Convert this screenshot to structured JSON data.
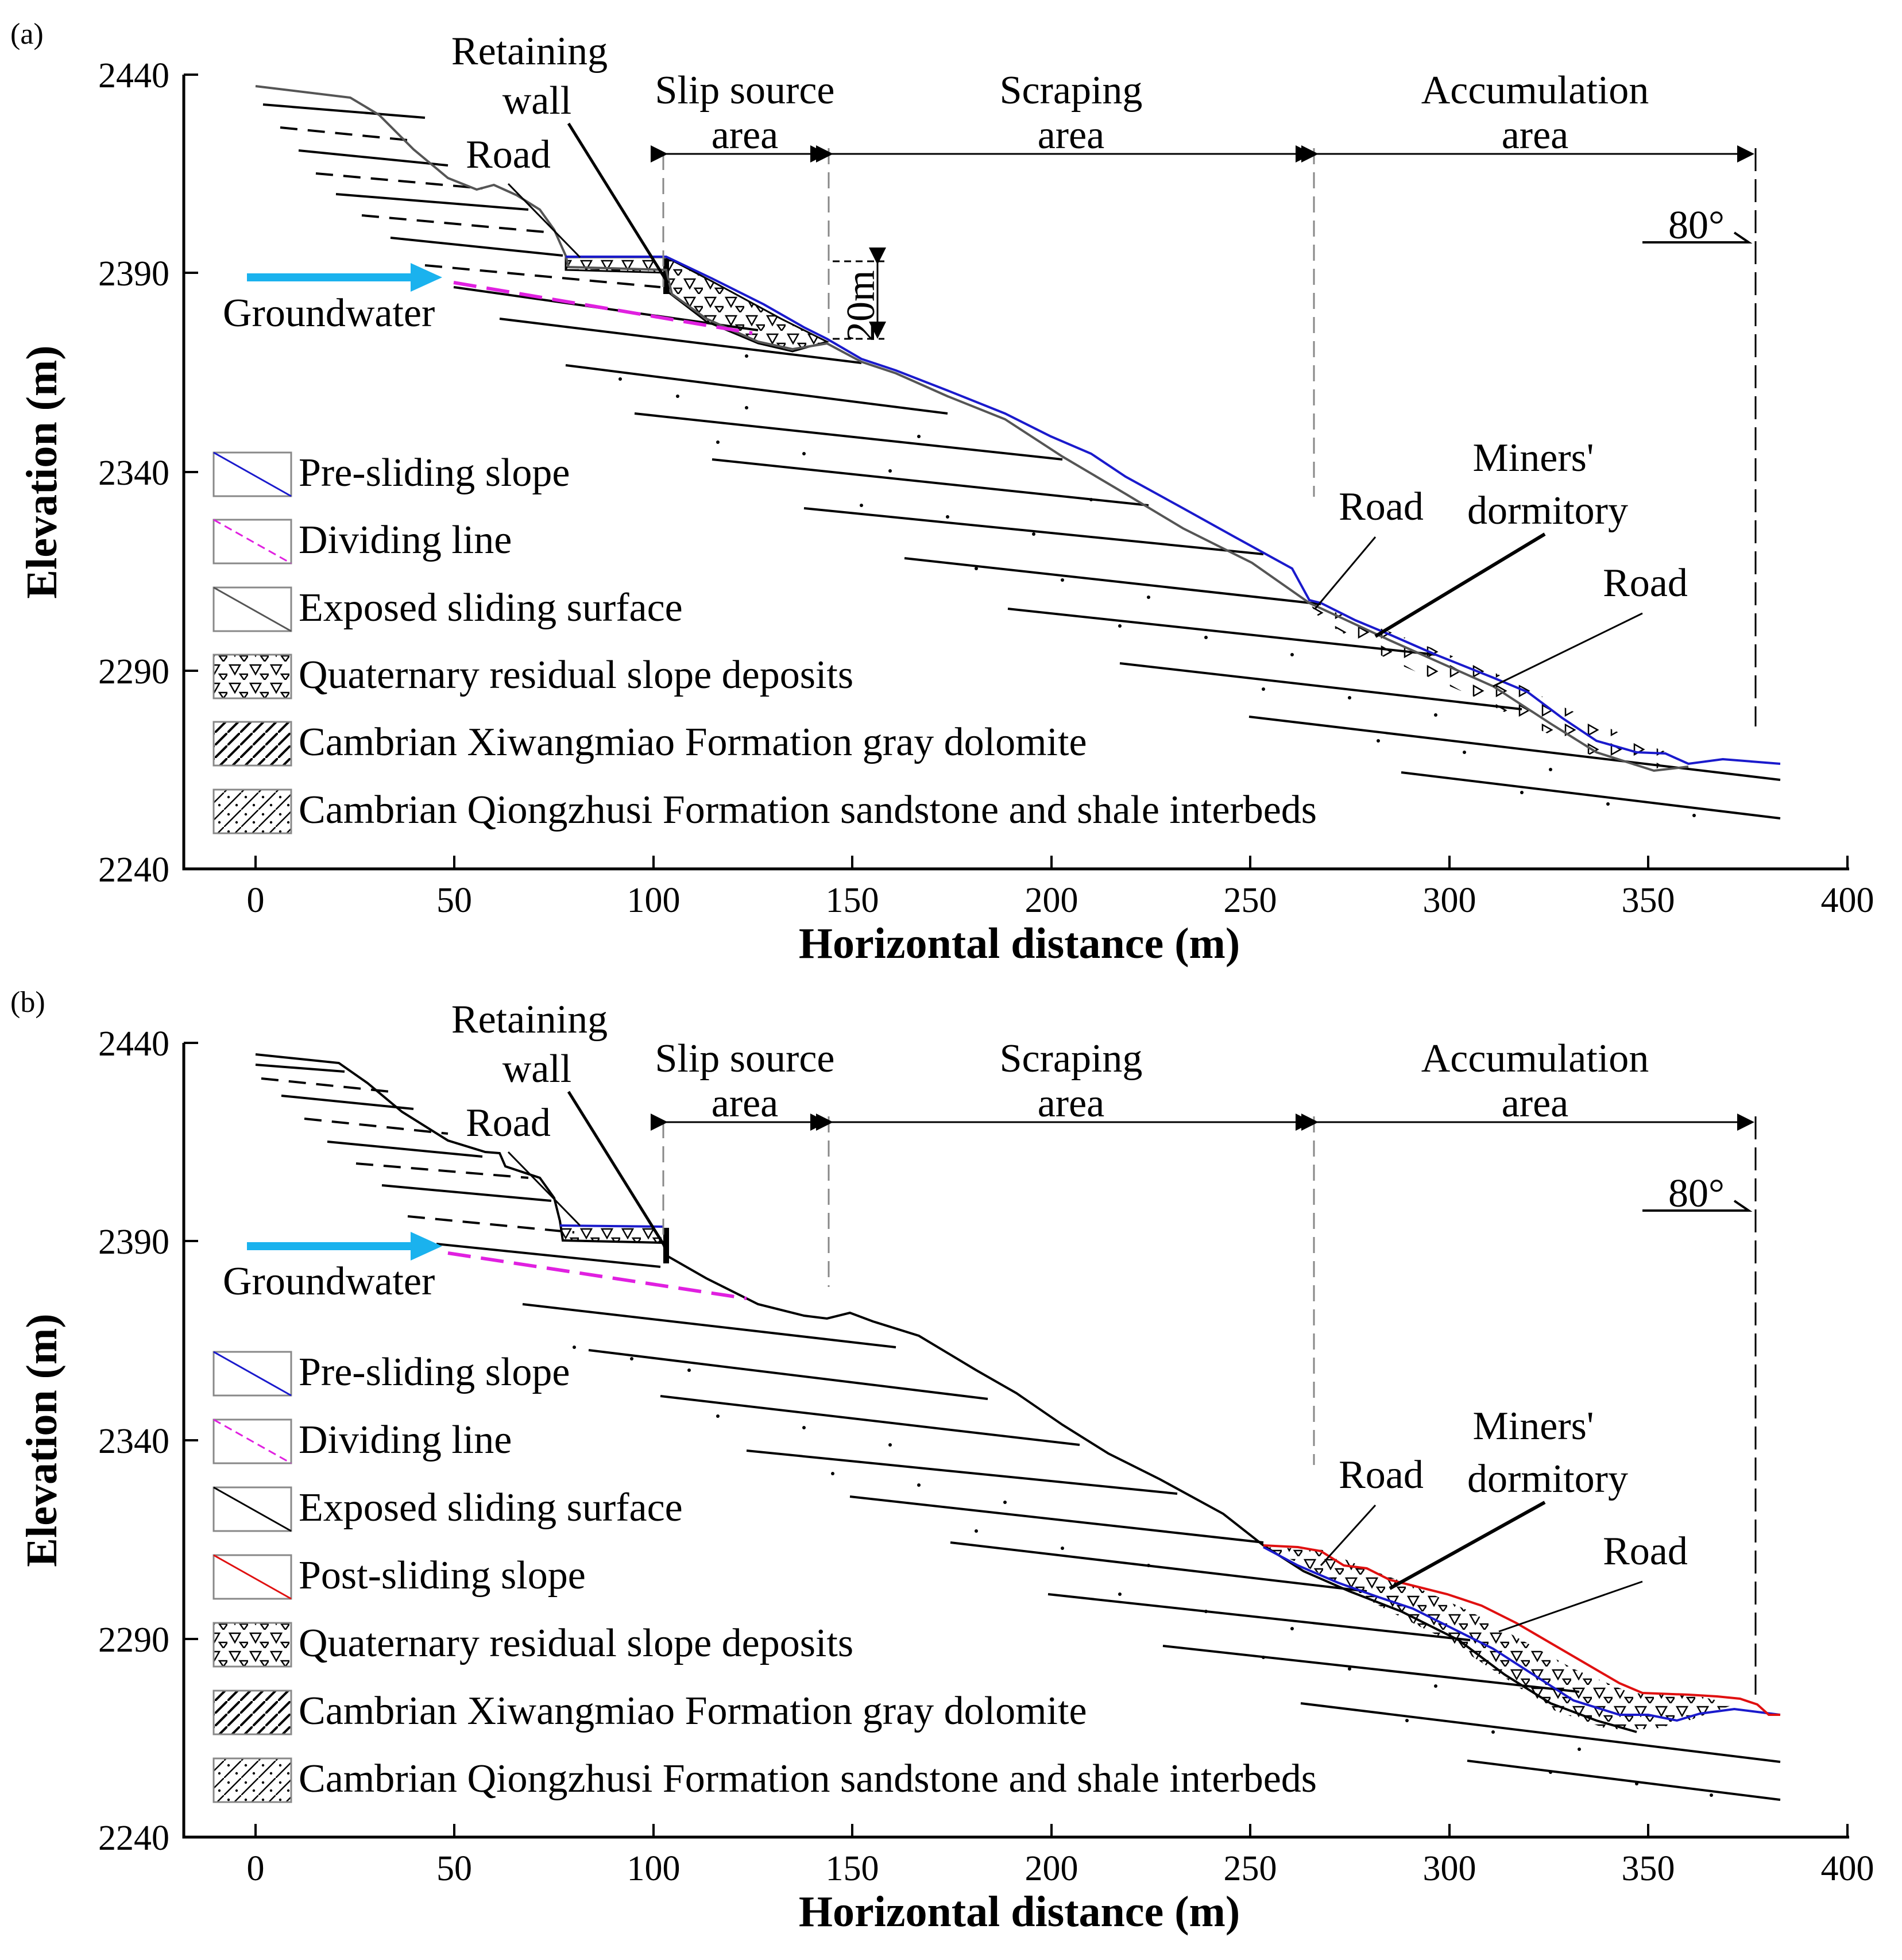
{
  "colors": {
    "pre_sliding": "#1a1acc",
    "dividing": "#e020e0",
    "exposed_a": "#555555",
    "exposed_b": "#000000",
    "post_sliding": "#e01010",
    "groundwater": "#1ab2ee"
  },
  "panel_a": {
    "label": "(a)",
    "xlabel": "Horizontal distance (m)",
    "ylabel": "Elevation (m)",
    "xticks": [
      "0",
      "50",
      "100",
      "150",
      "200",
      "250",
      "300",
      "350",
      "400"
    ],
    "yticks": [
      "2440",
      "2390",
      "2340",
      "2290",
      "2240"
    ],
    "zones": [
      {
        "line1": "Slip source",
        "line2": "area"
      },
      {
        "line1": "Scraping",
        "line2": "area"
      },
      {
        "line1": "Accumulation",
        "line2": "area"
      }
    ],
    "annotations": {
      "retaining_wall_1": "Retaining",
      "retaining_wall_2": "wall",
      "road_upper": "Road",
      "groundwater": "Groundwater",
      "scale": "20m",
      "angle": "80°",
      "road_mid": "Road",
      "miners_1": "Miners'",
      "miners_2": "dormitory",
      "road_low": "Road"
    },
    "legend": [
      {
        "label": "Pre-sliding slope",
        "icon": "blue-line-icon"
      },
      {
        "label": "Dividing line",
        "icon": "magenta-dash-icon"
      },
      {
        "label": "Exposed sliding surface",
        "icon": "black-line-icon"
      },
      {
        "label": "Quaternary residual slope deposits",
        "icon": "triangle-pattern-icon"
      },
      {
        "label": "Cambrian Xiwangmiao Formation gray dolomite",
        "icon": "hatch-pattern-icon"
      },
      {
        "label": "Cambrian Qiongzhusi Formation sandstone and shale interbeds",
        "icon": "hatch-dot-pattern-icon"
      }
    ]
  },
  "panel_b": {
    "label": "(b)",
    "xlabel": "Horizontal distance (m)",
    "ylabel": "Elevation (m)",
    "xticks": [
      "0",
      "50",
      "100",
      "150",
      "200",
      "250",
      "300",
      "350",
      "400"
    ],
    "yticks": [
      "2440",
      "2390",
      "2340",
      "2290",
      "2240"
    ],
    "zones": [
      {
        "line1": "Slip source",
        "line2": "area"
      },
      {
        "line1": "Scraping",
        "line2": "area"
      },
      {
        "line1": "Accumulation",
        "line2": "area"
      }
    ],
    "annotations": {
      "retaining_wall_1": "Retaining",
      "retaining_wall_2": "wall",
      "road_upper": "Road",
      "groundwater": "Groundwater",
      "angle": "80°",
      "road_mid": "Road",
      "miners_1": "Miners'",
      "miners_2": "dormitory",
      "road_low": "Road"
    },
    "legend": [
      {
        "label": "Pre-sliding slope",
        "icon": "blue-line-icon"
      },
      {
        "label": "Dividing line",
        "icon": "magenta-dash-icon"
      },
      {
        "label": "Exposed sliding surface",
        "icon": "black-line-icon"
      },
      {
        "label": "Post-sliding slope",
        "icon": "red-line-icon"
      },
      {
        "label": "Quaternary residual slope deposits",
        "icon": "triangle-pattern-icon"
      },
      {
        "label": "Cambrian Xiwangmiao Formation gray dolomite",
        "icon": "hatch-pattern-icon"
      },
      {
        "label": "Cambrian Qiongzhusi Formation sandstone and shale interbeds",
        "icon": "hatch-dot-pattern-icon"
      }
    ]
  }
}
